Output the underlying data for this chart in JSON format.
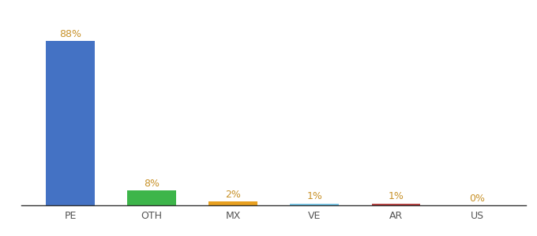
{
  "categories": [
    "PE",
    "OTH",
    "MX",
    "VE",
    "AR",
    "US"
  ],
  "values": [
    88,
    8,
    2,
    1,
    1,
    0
  ],
  "labels": [
    "88%",
    "8%",
    "2%",
    "1%",
    "1%",
    "0%"
  ],
  "bar_colors": [
    "#4472c4",
    "#3db54a",
    "#e8a020",
    "#78c7e8",
    "#b94040",
    "#aaaaaa"
  ],
  "label_color": "#c8922a",
  "background_color": "#ffffff",
  "ylim": [
    0,
    100
  ],
  "bar_width": 0.6,
  "label_fontsize": 9,
  "tick_fontsize": 9,
  "fig_width": 6.8,
  "fig_height": 3.0,
  "fig_dpi": 100
}
